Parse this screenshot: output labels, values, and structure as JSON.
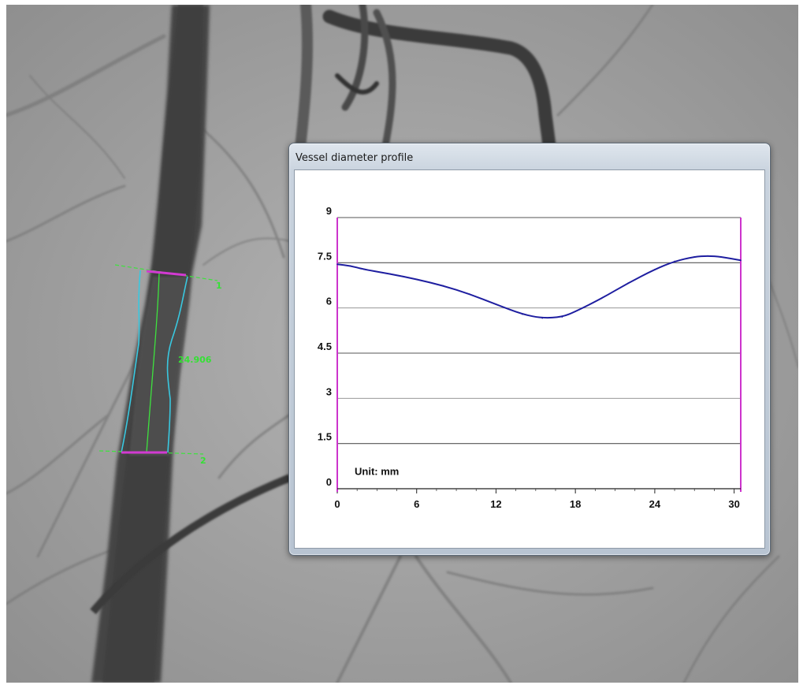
{
  "window": {
    "title": "Vessel diameter profile"
  },
  "chart_data": {
    "type": "line",
    "xlabel": "",
    "ylabel": "",
    "unit_label": "Unit: mm",
    "xlim": [
      0,
      30.5
    ],
    "ylim": [
      0,
      9
    ],
    "x_ticks": [
      "0",
      "6",
      "12",
      "18",
      "24",
      "30"
    ],
    "y_ticks": [
      "0",
      "1.5",
      "3",
      "4.5",
      "6",
      "7.5",
      "9"
    ],
    "grid": true,
    "series": [
      {
        "color": "#1e1ea0",
        "points": [
          [
            0,
            7.45
          ],
          [
            1,
            7.4
          ],
          [
            2,
            7.28
          ],
          [
            4,
            7.13
          ],
          [
            6,
            6.95
          ],
          [
            8,
            6.74
          ],
          [
            10,
            6.46
          ],
          [
            12,
            6.12
          ],
          [
            14,
            5.79
          ],
          [
            15.5,
            5.66
          ],
          [
            17,
            5.7
          ],
          [
            18,
            5.88
          ],
          [
            20,
            6.32
          ],
          [
            22,
            6.83
          ],
          [
            24,
            7.28
          ],
          [
            25.5,
            7.55
          ],
          [
            27,
            7.7
          ],
          [
            28,
            7.73
          ],
          [
            29,
            7.7
          ],
          [
            30.5,
            7.58
          ]
        ]
      }
    ],
    "boundary_marker_color": "#cc33cc"
  },
  "overlay": {
    "length_label": "24.906",
    "marker_top_label": "1",
    "marker_bottom_label": "2",
    "colors": {
      "outline": "#39c8e0",
      "centerline": "#3ee23e",
      "markers": "#d23ad2"
    }
  }
}
